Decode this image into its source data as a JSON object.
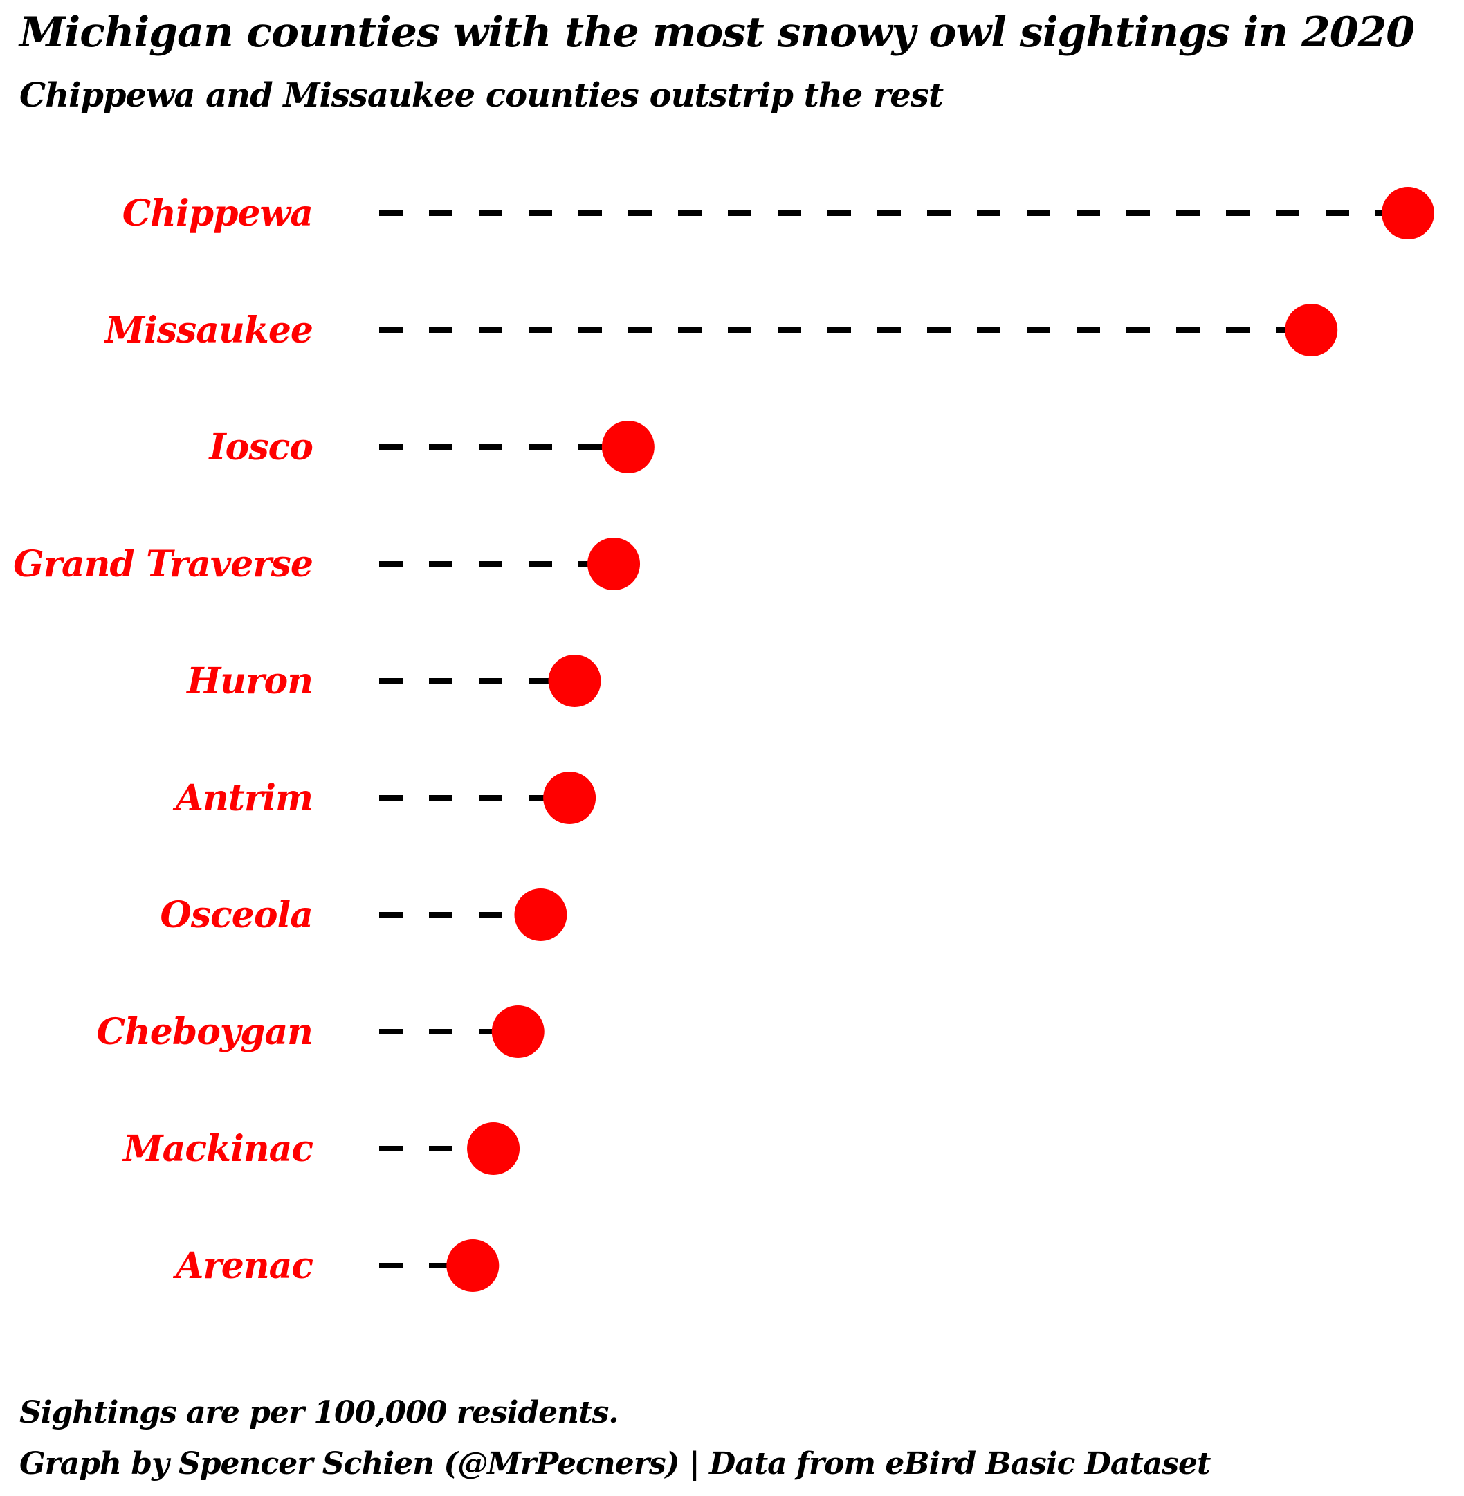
{
  "title": "Michigan counties with the most snowy owl sightings in 2020",
  "subtitle": "Chippewa and Missaukee counties outstrip the rest",
  "caption": {
    "line1": "Sightings are per 100,000 residents.",
    "line2": "Graph by Spencer Schien (@MrPecners) | Data from eBird Basic Dataset"
  },
  "colors": {
    "point": "#ff0000",
    "label": "#ff0000",
    "segment": "#000000",
    "background": "#ffffff"
  },
  "chart_data": {
    "type": "lollipop",
    "orientation": "horizontal",
    "title": "Michigan counties with the most snowy owl sightings in 2020",
    "subtitle": "Chippewa and Missaukee counties outstrip the rest",
    "xlabel": "",
    "ylabel": "",
    "axis_ticks_shown": false,
    "grid": false,
    "legend": "none",
    "segment_style": "dashed",
    "categories": [
      "Chippewa",
      "Missaukee",
      "Iosco",
      "Grand Traverse",
      "Huron",
      "Antrim",
      "Osceola",
      "Cheboygan",
      "Mackinac",
      "Arenac"
    ],
    "values": [
      100,
      90.6,
      24.2,
      22.8,
      19.0,
      18.5,
      15.7,
      13.5,
      11.1,
      9.1
    ],
    "xlim": [
      0,
      100
    ]
  }
}
